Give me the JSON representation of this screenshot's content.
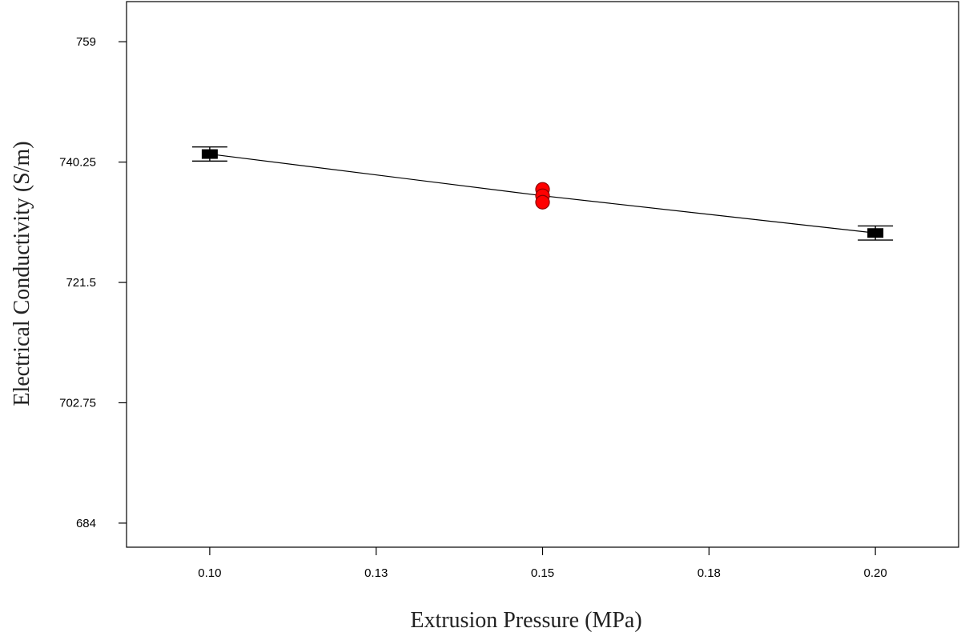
{
  "chart_data": {
    "type": "line",
    "title": "",
    "xlabel": "Extrusion Pressure (MPa)",
    "ylabel": "Electrical Conductivity (S/m)",
    "xlim": [
      0.0875,
      0.2125
    ],
    "ylim": [
      680.25,
      765.25
    ],
    "x_ticks": [
      {
        "value": 0.1,
        "label": "0.10"
      },
      {
        "value": 0.125,
        "label": "0.13"
      },
      {
        "value": 0.15,
        "label": "0.15"
      },
      {
        "value": 0.175,
        "label": "0.18"
      },
      {
        "value": 0.2,
        "label": "0.20"
      }
    ],
    "y_ticks": [
      {
        "value": 684,
        "label": "684"
      },
      {
        "value": 702.75,
        "label": "702.75"
      },
      {
        "value": 721.5,
        "label": "721.5"
      },
      {
        "value": 740.25,
        "label": "740.25"
      },
      {
        "value": 759,
        "label": "759"
      }
    ],
    "grid": false,
    "legend": "none",
    "series": [
      {
        "points": [
          {
            "x": 0.1,
            "y": 741.5
          },
          {
            "x": 0.15,
            "y": 735.0
          },
          {
            "x": 0.2,
            "y": 729.2
          }
        ],
        "color": "#000000"
      }
    ],
    "error_bars": [
      {
        "x": 0.1,
        "y": 741.5,
        "low": 740.4,
        "high": 742.6
      },
      {
        "x": 0.2,
        "y": 729.2,
        "low": 728.1,
        "high": 730.3
      }
    ],
    "design_points": {
      "color": "#ff0000",
      "points": [
        {
          "x": 0.15,
          "y": 736.0
        },
        {
          "x": 0.15,
          "y": 735.0
        },
        {
          "x": 0.15,
          "y": 734.0
        }
      ]
    },
    "marker_color": "#000000"
  }
}
